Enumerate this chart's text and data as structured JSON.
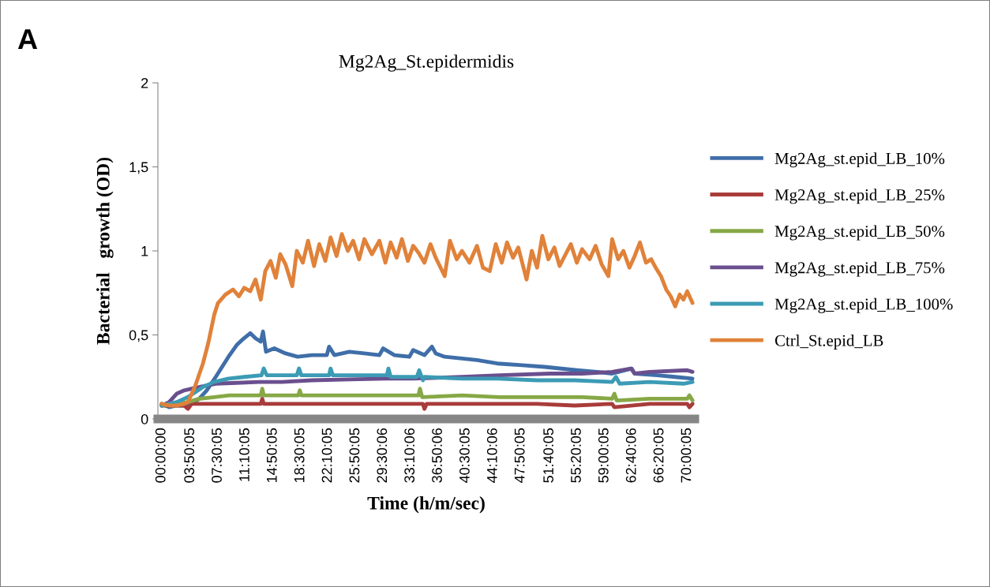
{
  "chart_data": {
    "type": "line",
    "title": "Mg2Ag_St.epidermidis",
    "xlabel": "Time (h/m/sec)",
    "ylabel": "Bacterial   growth (OD)",
    "annotations": [
      "A"
    ],
    "xlim": [
      -0.5,
      71
    ],
    "ylim": [
      0,
      2
    ],
    "yticks": [
      0,
      {
        "value": 0.5,
        "label": "0,5"
      },
      1,
      {
        "value": 1.5,
        "label": "1,5"
      },
      2
    ],
    "xticks": [
      {
        "value": 0,
        "label": "00:00:00"
      },
      {
        "value": 3.834722,
        "label": "03:50:05"
      },
      {
        "value": 7.501389,
        "label": "07:30:05"
      },
      {
        "value": 11.168056,
        "label": "11:10:05"
      },
      {
        "value": 14.834722,
        "label": "14:50:05"
      },
      {
        "value": 18.501389,
        "label": "18:30:05"
      },
      {
        "value": 22.168056,
        "label": "22:10:05"
      },
      {
        "value": 25.834722,
        "label": "25:50:05"
      },
      {
        "value": 29.501667,
        "label": "29:30:06"
      },
      {
        "value": 33.168333,
        "label": "33:10:06"
      },
      {
        "value": 36.835,
        "label": "36:50:06"
      },
      {
        "value": 40.501389,
        "label": "40:30:05"
      },
      {
        "value": 44.168333,
        "label": "44:10:06"
      },
      {
        "value": 47.834722,
        "label": "47:50:05"
      },
      {
        "value": 51.668056,
        "label": "51:40:05"
      },
      {
        "value": 55.334722,
        "label": "55:20:05"
      },
      {
        "value": 59.001389,
        "label": "59:00:05"
      },
      {
        "value": 62.668333,
        "label": "62:40:06"
      },
      {
        "value": 66.334722,
        "label": "66:20:05"
      },
      {
        "value": 70.001389,
        "label": "70:00:05"
      }
    ],
    "grid": false,
    "legend": "right",
    "marker": "none",
    "line_style": "solid",
    "series": [
      {
        "name": "Mg2Ag_st.epid_LB_10%",
        "color": "#3f6ea8",
        "x": [
          0,
          1,
          2,
          3,
          4,
          5,
          6,
          7.2,
          8.9,
          10,
          10.7,
          11.8,
          12.5,
          13.2,
          13.5,
          13.9,
          15,
          16.5,
          18.1,
          20,
          22,
          22.3,
          23,
          25,
          27,
          29,
          29.5,
          31,
          33,
          33.5,
          35,
          36,
          36.5,
          37.7,
          40,
          42,
          44.7,
          48,
          51,
          55.3,
          58,
          60,
          62.6,
          63,
          66,
          68.4,
          70.7
        ],
        "values": [
          0.09,
          0.07,
          0.08,
          0.08,
          0.09,
          0.12,
          0.17,
          0.25,
          0.37,
          0.44,
          0.47,
          0.51,
          0.48,
          0.46,
          0.52,
          0.4,
          0.42,
          0.39,
          0.37,
          0.38,
          0.38,
          0.43,
          0.38,
          0.4,
          0.39,
          0.38,
          0.42,
          0.38,
          0.37,
          0.41,
          0.38,
          0.43,
          0.39,
          0.37,
          0.36,
          0.35,
          0.33,
          0.32,
          0.31,
          0.29,
          0.28,
          0.27,
          0.3,
          0.27,
          0.26,
          0.25,
          0.24
        ]
      },
      {
        "name": "Mg2Ag_st.epid_LB_25%",
        "color": "#a83c3a",
        "x": [
          0,
          3,
          3.5,
          4,
          8,
          13.2,
          13.4,
          13.6,
          20,
          25,
          30,
          34.8,
          35,
          35.3,
          40,
          50,
          55,
          60,
          60.3,
          65,
          70,
          70.3,
          70.7
        ],
        "values": [
          0.08,
          0.08,
          0.06,
          0.09,
          0.09,
          0.09,
          0.12,
          0.09,
          0.09,
          0.09,
          0.09,
          0.09,
          0.06,
          0.09,
          0.09,
          0.09,
          0.08,
          0.09,
          0.07,
          0.09,
          0.09,
          0.07,
          0.09
        ]
      },
      {
        "name": "Mg2Ag_st.epid_LB_50%",
        "color": "#86a846",
        "x": [
          0,
          2,
          3.5,
          5,
          7,
          9,
          13.2,
          13.4,
          13.6,
          18.2,
          18.4,
          18.6,
          25,
          30,
          34.2,
          34.4,
          34.7,
          40,
          45,
          50,
          56,
          60,
          60.3,
          60.6,
          65,
          70,
          70.3,
          70.7
        ],
        "values": [
          0.08,
          0.09,
          0.1,
          0.12,
          0.13,
          0.14,
          0.14,
          0.18,
          0.14,
          0.14,
          0.17,
          0.14,
          0.14,
          0.14,
          0.14,
          0.18,
          0.13,
          0.14,
          0.13,
          0.13,
          0.13,
          0.12,
          0.15,
          0.11,
          0.12,
          0.12,
          0.14,
          0.11
        ]
      },
      {
        "name": "Mg2Ag_st.epid_LB_75%",
        "color": "#6a4f8e",
        "x": [
          0,
          1,
          2,
          3,
          4,
          5,
          7.2,
          10,
          13,
          16,
          20,
          25,
          30,
          33.5,
          40,
          45,
          51.8,
          56,
          60,
          62.5,
          63,
          65,
          70,
          70.7
        ],
        "values": [
          0.08,
          0.1,
          0.15,
          0.17,
          0.18,
          0.19,
          0.21,
          0.215,
          0.22,
          0.22,
          0.23,
          0.235,
          0.24,
          0.24,
          0.25,
          0.26,
          0.27,
          0.27,
          0.28,
          0.3,
          0.27,
          0.28,
          0.29,
          0.28
        ]
      },
      {
        "name": "Mg2Ag_st.epid_LB_100%",
        "color": "#3c9bb5",
        "x": [
          0,
          2,
          3.5,
          5.5,
          7,
          8.9,
          11,
          13.3,
          13.6,
          14,
          18,
          18.3,
          18.6,
          22.3,
          22.5,
          22.8,
          27,
          30,
          30.2,
          30.5,
          34,
          34.3,
          34.8,
          35,
          40,
          44.7,
          50,
          55,
          60,
          60.5,
          61,
          65,
          69.5,
          70.7
        ],
        "values": [
          0.08,
          0.1,
          0.13,
          0.19,
          0.22,
          0.24,
          0.25,
          0.26,
          0.3,
          0.26,
          0.26,
          0.3,
          0.26,
          0.26,
          0.3,
          0.26,
          0.26,
          0.26,
          0.3,
          0.25,
          0.25,
          0.29,
          0.23,
          0.25,
          0.24,
          0.24,
          0.23,
          0.23,
          0.22,
          0.25,
          0.21,
          0.22,
          0.21,
          0.22
        ]
      },
      {
        "name": "Ctrl_St.epid_LB",
        "color": "#e0823a",
        "x": [
          0,
          1,
          2,
          3,
          3.5,
          4.5,
          5.5,
          6.2,
          7,
          7.5,
          8.5,
          9.5,
          10.3,
          11,
          11.8,
          12.5,
          13.2,
          13.8,
          14.5,
          15.2,
          15.8,
          16.5,
          17.4,
          18,
          18.8,
          19.5,
          20.3,
          21,
          21.8,
          22.5,
          23.3,
          24,
          24.8,
          25.5,
          26.3,
          27,
          28,
          29,
          29.8,
          30.5,
          31.3,
          32,
          32.8,
          33.5,
          34.2,
          35,
          35.8,
          36.5,
          37.7,
          38.4,
          39.3,
          40,
          41,
          42,
          42.8,
          43.7,
          44.5,
          45.3,
          46,
          46.8,
          47.5,
          48.6,
          49.3,
          50,
          50.7,
          51.5,
          52.3,
          53,
          53.8,
          54.5,
          55.3,
          56,
          57,
          57.8,
          58.6,
          59.5,
          60,
          60.8,
          61.5,
          62.3,
          63,
          63.7,
          64.5,
          65.2,
          65.8,
          66.5,
          67.2,
          67.8,
          68.4,
          69,
          69.5,
          70,
          70.7
        ],
        "values": [
          0.09,
          0.08,
          0.08,
          0.09,
          0.1,
          0.2,
          0.33,
          0.45,
          0.62,
          0.69,
          0.74,
          0.77,
          0.73,
          0.78,
          0.76,
          0.83,
          0.71,
          0.88,
          0.94,
          0.84,
          0.98,
          0.92,
          0.79,
          1.0,
          0.93,
          1.06,
          0.91,
          1.04,
          0.94,
          1.08,
          0.97,
          1.1,
          1.0,
          1.06,
          0.95,
          1.07,
          0.98,
          1.06,
          0.93,
          1.05,
          0.96,
          1.07,
          0.94,
          1.03,
          0.99,
          0.93,
          1.04,
          0.96,
          0.85,
          1.06,
          0.95,
          1.0,
          0.93,
          1.03,
          0.9,
          0.88,
          1.04,
          0.93,
          1.05,
          0.96,
          1.02,
          0.83,
          1.0,
          0.9,
          1.09,
          0.95,
          1.02,
          0.91,
          0.98,
          1.04,
          0.93,
          1.01,
          0.95,
          1.03,
          0.92,
          0.85,
          1.07,
          0.95,
          1.0,
          0.9,
          0.97,
          1.05,
          0.93,
          0.95,
          0.9,
          0.85,
          0.77,
          0.73,
          0.67,
          0.74,
          0.71,
          0.76,
          0.69
        ]
      }
    ]
  }
}
